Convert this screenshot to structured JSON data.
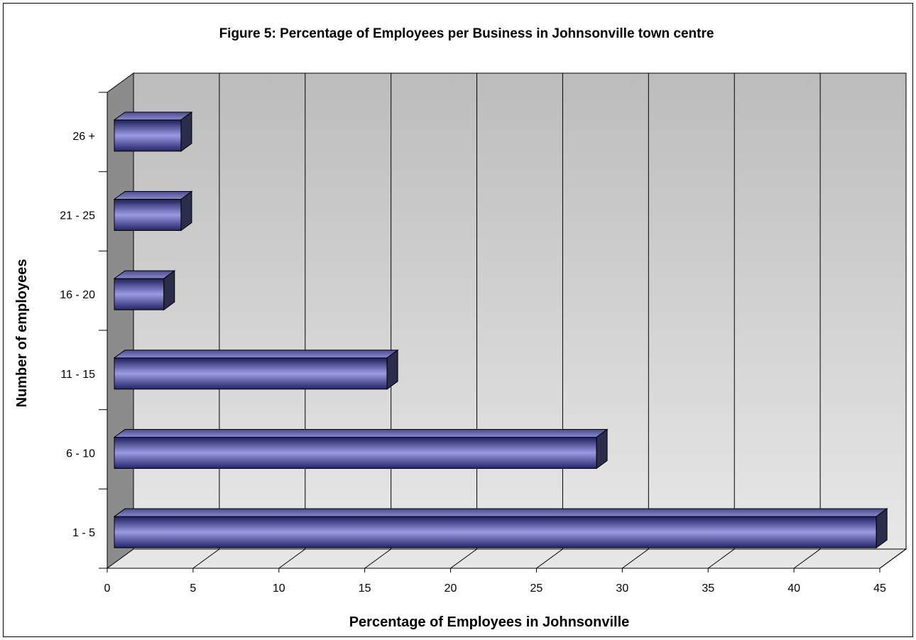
{
  "chart_data": {
    "type": "bar",
    "orientation": "horizontal",
    "style": "3d",
    "title": "Figure 5: Percentage of Employees per Business in Johnsonville town centre",
    "xlabel": "Percentage of Employees in Johnsonville",
    "ylabel": "Number of employees",
    "categories": [
      "1 - 5",
      "6 - 10",
      "11 - 15",
      "16 - 20",
      "21 - 25",
      "26 +"
    ],
    "values": [
      44.8,
      28.5,
      16.3,
      3.3,
      4.3,
      4.3
    ],
    "xlim": [
      0,
      45
    ],
    "xticks": [
      "0",
      "5",
      "10",
      "15",
      "20",
      "25",
      "30",
      "35",
      "40",
      "45"
    ],
    "grid": true,
    "legend": "none",
    "colors": {
      "bar": "#7f7fd6",
      "bar_dark": "#1e1e5c",
      "bar_light": "#b3b3ec",
      "wall": "#c8c8c8",
      "side_wall": "#8c8c8c",
      "floor": "#e6e6e6"
    }
  }
}
